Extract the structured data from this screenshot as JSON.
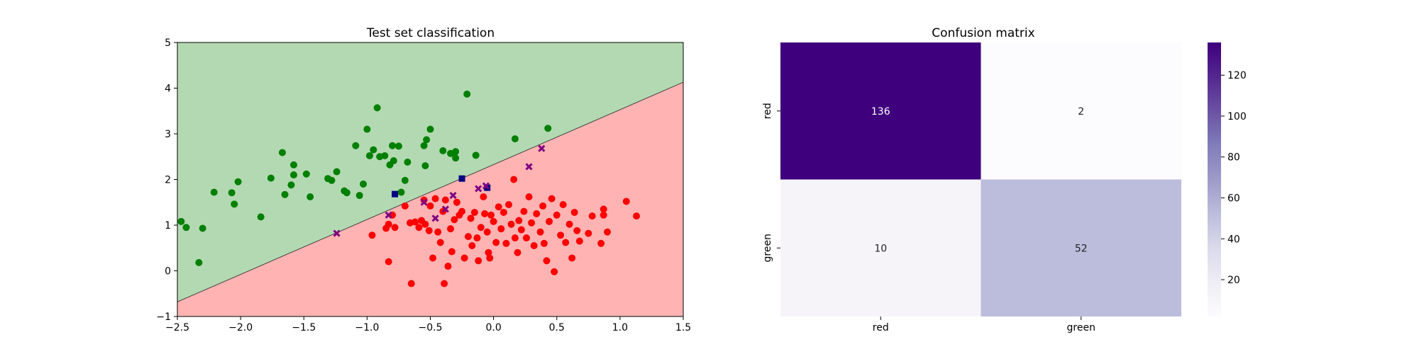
{
  "chart_data": [
    {
      "type": "scatter",
      "title": "Test set classification",
      "xlabel": "",
      "ylabel": "",
      "xlim": [
        -2.5,
        1.5
      ],
      "ylim": [
        -1,
        5
      ],
      "xticks": [
        "−2.5",
        "−2.0",
        "−1.5",
        "−1.0",
        "−0.5",
        "0.0",
        "0.5",
        "1.0",
        "1.5"
      ],
      "yticks": [
        "−1",
        "0",
        "1",
        "2",
        "3",
        "4",
        "5"
      ],
      "grid": false,
      "decision_boundary": {
        "x": [
          -2.5,
          1.5
        ],
        "y": [
          -0.68,
          4.13
        ]
      },
      "region_colors": {
        "above": "#b3d9b3",
        "below": "#ffb3b3"
      },
      "series": [
        {
          "color": "#008000",
          "marker": "circle",
          "points": [
            [
              -2.47,
              1.08
            ],
            [
              -2.43,
              0.95
            ],
            [
              -2.33,
              0.18
            ],
            [
              -2.3,
              0.93
            ],
            [
              -2.21,
              1.72
            ],
            [
              -2.07,
              1.71
            ],
            [
              -2.05,
              1.46
            ],
            [
              -2.02,
              1.95
            ],
            [
              -1.84,
              1.18
            ],
            [
              -1.76,
              2.03
            ],
            [
              -1.67,
              2.59
            ],
            [
              -1.65,
              1.67
            ],
            [
              -1.6,
              1.88
            ],
            [
              -1.58,
              2.32
            ],
            [
              -1.58,
              2.1
            ],
            [
              -1.48,
              2.12
            ],
            [
              -1.45,
              1.62
            ],
            [
              -1.31,
              2.02
            ],
            [
              -1.28,
              1.98
            ],
            [
              -1.24,
              2.17
            ],
            [
              -1.18,
              1.75
            ],
            [
              -1.16,
              1.71
            ],
            [
              -1.09,
              2.74
            ],
            [
              -1.06,
              1.65
            ],
            [
              -1.03,
              1.9
            ],
            [
              -1.0,
              3.1
            ],
            [
              -0.98,
              2.52
            ],
            [
              -0.95,
              2.65
            ],
            [
              -0.92,
              3.57
            ],
            [
              -0.9,
              2.5
            ],
            [
              -0.86,
              2.52
            ],
            [
              -0.82,
              2.32
            ],
            [
              -0.8,
              2.74
            ],
            [
              -0.79,
              2.41
            ],
            [
              -0.75,
              2.73
            ],
            [
              -0.73,
              1.72
            ],
            [
              -0.7,
              1.98
            ],
            [
              -0.68,
              2.38
            ],
            [
              -0.55,
              2.74
            ],
            [
              -0.54,
              2.3
            ],
            [
              -0.53,
              2.87
            ],
            [
              -0.5,
              3.1
            ],
            [
              -0.4,
              2.63
            ],
            [
              -0.34,
              2.57
            ],
            [
              -0.3,
              2.61
            ],
            [
              -0.3,
              2.47
            ],
            [
              -0.21,
              3.87
            ],
            [
              -0.14,
              2.53
            ],
            [
              0.17,
              2.89
            ],
            [
              0.43,
              3.12
            ]
          ]
        },
        {
          "color": "#ff0000",
          "marker": "circle",
          "points": [
            [
              -0.96,
              0.78
            ],
            [
              -0.85,
              0.93
            ],
            [
              -0.83,
              1.02
            ],
            [
              -0.83,
              0.2
            ],
            [
              -0.8,
              1.22
            ],
            [
              -0.78,
              0.95
            ],
            [
              -0.7,
              1.42
            ],
            [
              -0.66,
              1.05
            ],
            [
              -0.65,
              -0.28
            ],
            [
              -0.62,
              1.07
            ],
            [
              -0.59,
              0.95
            ],
            [
              -0.57,
              1.1
            ],
            [
              -0.55,
              1.55
            ],
            [
              -0.54,
              1.02
            ],
            [
              -0.51,
              0.88
            ],
            [
              -0.5,
              1.42
            ],
            [
              -0.48,
              0.28
            ],
            [
              -0.46,
              1.58
            ],
            [
              -0.44,
              0.85
            ],
            [
              -0.42,
              0.62
            ],
            [
              -0.4,
              1.3
            ],
            [
              -0.39,
              -0.28
            ],
            [
              -0.38,
              1.55
            ],
            [
              -0.36,
              0.1
            ],
            [
              -0.34,
              0.92
            ],
            [
              -0.33,
              0.42
            ],
            [
              -0.31,
              1.12
            ],
            [
              -0.29,
              1.5
            ],
            [
              -0.27,
              1.22
            ],
            [
              -0.25,
              1.3
            ],
            [
              -0.23,
              0.28
            ],
            [
              -0.2,
              0.75
            ],
            [
              -0.18,
              1.15
            ],
            [
              -0.17,
              0.55
            ],
            [
              -0.15,
              1.28
            ],
            [
              -0.13,
              0.72
            ],
            [
              -0.12,
              0.22
            ],
            [
              -0.1,
              0.95
            ],
            [
              -0.08,
              1.62
            ],
            [
              -0.07,
              1.25
            ],
            [
              -0.05,
              0.85
            ],
            [
              -0.04,
              0.4
            ],
            [
              -0.03,
              0.28
            ],
            [
              -0.02,
              1.22
            ],
            [
              0.0,
              1.08
            ],
            [
              0.02,
              0.62
            ],
            [
              0.04,
              1.4
            ],
            [
              0.06,
              0.92
            ],
            [
              0.08,
              1.28
            ],
            [
              0.1,
              0.6
            ],
            [
              0.12,
              1.45
            ],
            [
              0.14,
              1.02
            ],
            [
              0.16,
              2.0
            ],
            [
              0.17,
              0.72
            ],
            [
              0.19,
              0.4
            ],
            [
              0.2,
              1.1
            ],
            [
              0.22,
              0.9
            ],
            [
              0.24,
              1.3
            ],
            [
              0.26,
              0.72
            ],
            [
              0.28,
              1.62
            ],
            [
              0.3,
              1.05
            ],
            [
              0.32,
              0.55
            ],
            [
              0.34,
              1.25
            ],
            [
              0.37,
              0.85
            ],
            [
              0.39,
              1.42
            ],
            [
              0.4,
              0.6
            ],
            [
              0.42,
              0.22
            ],
            [
              0.44,
              1.08
            ],
            [
              0.46,
              1.58
            ],
            [
              0.48,
              -0.02
            ],
            [
              0.5,
              1.22
            ],
            [
              0.53,
              0.78
            ],
            [
              0.55,
              1.45
            ],
            [
              0.57,
              0.62
            ],
            [
              0.6,
              1.02
            ],
            [
              0.62,
              0.28
            ],
            [
              0.64,
              1.28
            ],
            [
              0.66,
              0.88
            ],
            [
              0.68,
              0.65
            ],
            [
              0.75,
              0.82
            ],
            [
              0.78,
              1.2
            ],
            [
              0.85,
              0.6
            ],
            [
              0.87,
              1.35
            ],
            [
              0.87,
              1.22
            ],
            [
              0.9,
              0.85
            ],
            [
              1.05,
              1.52
            ],
            [
              1.13,
              1.2
            ]
          ]
        },
        {
          "color": "#000080",
          "marker": "square",
          "points": [
            [
              -0.78,
              1.68
            ],
            [
              -0.25,
              2.02
            ],
            [
              -0.05,
              1.82
            ]
          ]
        },
        {
          "color": "#800080",
          "marker": "x",
          "points": [
            [
              -1.24,
              0.82
            ],
            [
              -0.83,
              1.22
            ],
            [
              -0.55,
              1.5
            ],
            [
              -0.46,
              1.15
            ],
            [
              -0.38,
              1.35
            ],
            [
              -0.32,
              1.65
            ],
            [
              -0.12,
              1.8
            ],
            [
              -0.06,
              1.86
            ],
            [
              0.28,
              2.28
            ],
            [
              0.38,
              2.68
            ]
          ]
        }
      ]
    },
    {
      "type": "heatmap",
      "title": "Confusion matrix",
      "xlabel": "",
      "ylabel": "",
      "x_categories": [
        "red",
        "green"
      ],
      "y_categories": [
        "red",
        "green"
      ],
      "values": [
        [
          136,
          2
        ],
        [
          10,
          52
        ]
      ],
      "colormap": "Purples",
      "colorbar_ticks": [
        "20",
        "40",
        "60",
        "80",
        "100",
        "120"
      ],
      "colorbar_range": [
        2,
        136
      ]
    }
  ]
}
